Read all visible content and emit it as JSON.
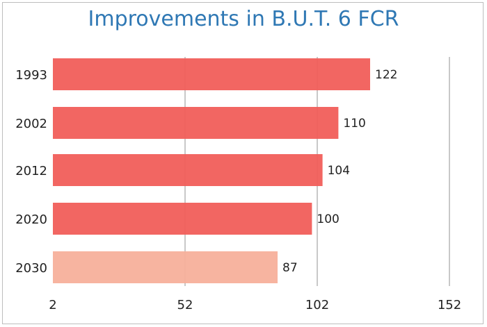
{
  "chart_data": {
    "type": "bar",
    "orientation": "horizontal",
    "title": "Improvements in B.U.T. 6 FCR",
    "xlabel": "",
    "ylabel": "",
    "categories": [
      "1993",
      "2002",
      "2012",
      "2020",
      "2030"
    ],
    "values": [
      122,
      110,
      104,
      100,
      87
    ],
    "data_labels": [
      "122",
      "110",
      "104",
      "100",
      "87"
    ],
    "xlim": [
      2,
      152
    ],
    "xticks": [
      2,
      52,
      102,
      152
    ],
    "xtick_labels": [
      "2",
      "52",
      "102",
      "152"
    ],
    "grid": true,
    "colors": {
      "bar": "#f15e5a",
      "bar_projection": "#f7b09b",
      "grid": "#c8c8c8",
      "title": "#2f78b4"
    }
  }
}
